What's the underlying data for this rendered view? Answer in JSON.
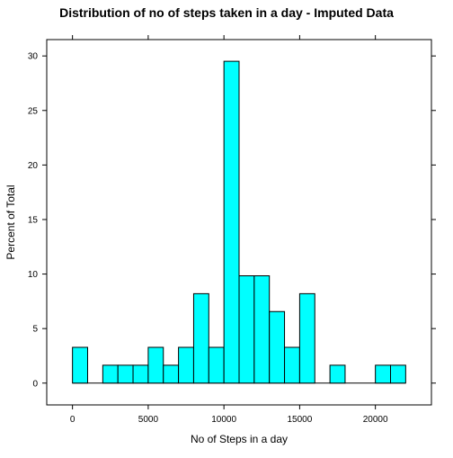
{
  "chart_data": {
    "type": "bar",
    "title": "Distribution of no of steps taken in a day - Imputed Data",
    "xlabel": "No of Steps in a day",
    "ylabel": "Percent of Total",
    "bin_width": 1000,
    "bins": [
      {
        "x0": 0,
        "x1": 1000,
        "value": 3.28
      },
      {
        "x0": 1000,
        "x1": 2000,
        "value": 0
      },
      {
        "x0": 2000,
        "x1": 3000,
        "value": 1.64
      },
      {
        "x0": 3000,
        "x1": 4000,
        "value": 1.64
      },
      {
        "x0": 4000,
        "x1": 5000,
        "value": 1.64
      },
      {
        "x0": 5000,
        "x1": 6000,
        "value": 3.28
      },
      {
        "x0": 6000,
        "x1": 7000,
        "value": 1.64
      },
      {
        "x0": 7000,
        "x1": 8000,
        "value": 3.28
      },
      {
        "x0": 8000,
        "x1": 9000,
        "value": 8.2
      },
      {
        "x0": 9000,
        "x1": 10000,
        "value": 3.28
      },
      {
        "x0": 10000,
        "x1": 11000,
        "value": 29.51
      },
      {
        "x0": 11000,
        "x1": 12000,
        "value": 9.84
      },
      {
        "x0": 12000,
        "x1": 13000,
        "value": 9.84
      },
      {
        "x0": 13000,
        "x1": 14000,
        "value": 6.56
      },
      {
        "x0": 14000,
        "x1": 15000,
        "value": 3.28
      },
      {
        "x0": 15000,
        "x1": 16000,
        "value": 8.2
      },
      {
        "x0": 16000,
        "x1": 17000,
        "value": 0
      },
      {
        "x0": 17000,
        "x1": 18000,
        "value": 1.64
      },
      {
        "x0": 18000,
        "x1": 19000,
        "value": 0
      },
      {
        "x0": 19000,
        "x1": 20000,
        "value": 0
      },
      {
        "x0": 20000,
        "x1": 21000,
        "value": 1.64
      },
      {
        "x0": 21000,
        "x1": 22000,
        "value": 1.64
      }
    ],
    "xlim": [
      -1700,
      23700
    ],
    "ylim": [
      -2.0,
      31.5
    ],
    "x_ticks": [
      0,
      5000,
      10000,
      15000,
      20000
    ],
    "x_tick_labels": [
      "0",
      "5000",
      "10000",
      "15000",
      "20000"
    ],
    "y_ticks": [
      0,
      5,
      10,
      15,
      20,
      25,
      30
    ],
    "y_tick_labels": [
      "0",
      "5",
      "10",
      "15",
      "20",
      "25",
      "30"
    ],
    "bar_color": "#00ffff",
    "grid": false
  }
}
